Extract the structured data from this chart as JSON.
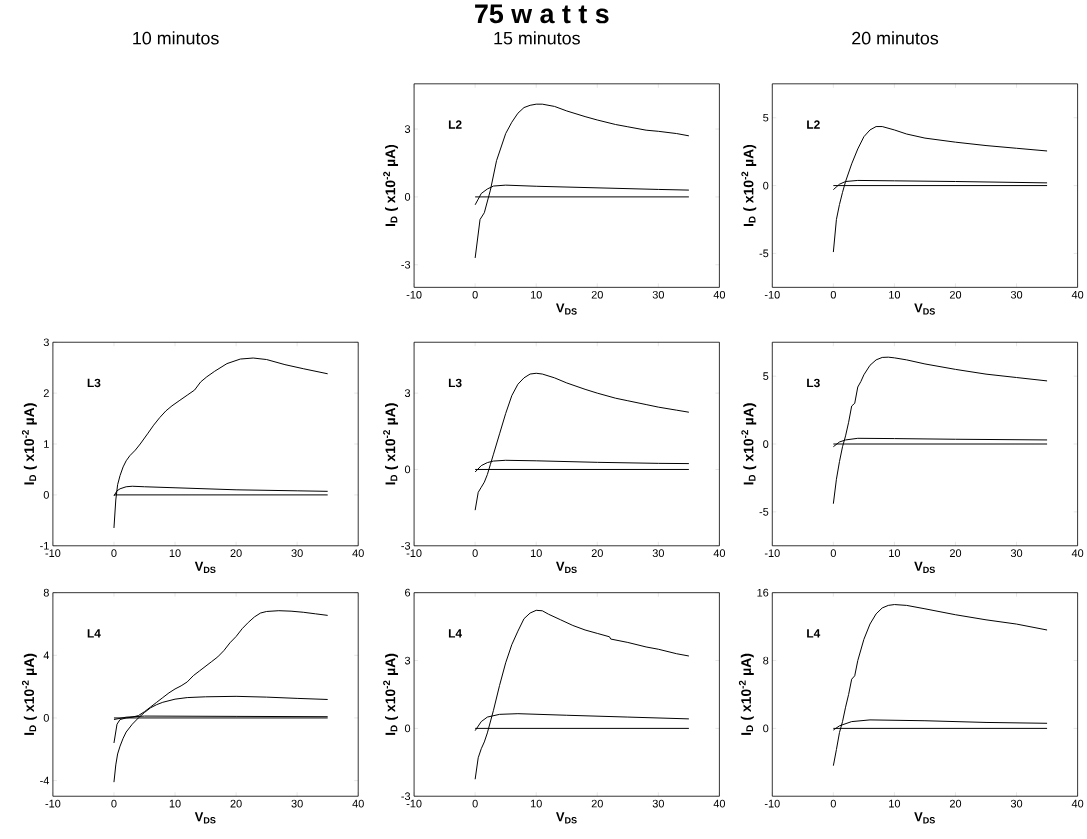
{
  "chart_data": [
    {
      "type": "line",
      "title": "75 w a t t s",
      "subtitle": "15 minutos",
      "xlabel": "V$_{DS}$",
      "ylabel": "I$_{D}$  ( x10$^{-2}$ µA)",
      "annotations": [
        "L2"
      ],
      "xlim": [
        -10,
        40
      ],
      "ylim": [
        -4,
        5
      ],
      "xticks": [
        -10,
        0,
        10,
        20,
        30,
        40
      ],
      "yticks": [
        -3,
        0,
        3
      ],
      "series": [
        {
          "color": "#000000",
          "x": [
            0,
            0.8,
            1.5,
            2.5,
            3.5,
            5,
            6,
            7,
            8,
            9,
            10,
            11,
            13,
            15,
            18,
            20,
            23,
            25,
            28,
            30,
            33,
            35
          ],
          "values": [
            -2.7,
            -1.0,
            -0.7,
            0.3,
            1.6,
            2.8,
            3.3,
            3.7,
            3.95,
            4.05,
            4.1,
            4.1,
            4.0,
            3.8,
            3.55,
            3.4,
            3.2,
            3.1,
            2.95,
            2.9,
            2.8,
            2.7
          ]
        },
        {
          "color": "#000000",
          "x": [
            0,
            0.5,
            1,
            2,
            3,
            5,
            10,
            20,
            30,
            35
          ],
          "values": [
            -0.35,
            -0.1,
            0.15,
            0.35,
            0.48,
            0.52,
            0.47,
            0.4,
            0.33,
            0.3
          ]
        },
        {
          "color": "#000000",
          "x": [
            0,
            35
          ],
          "values": [
            0,
            0
          ]
        }
      ]
    },
    {
      "type": "line",
      "subtitle": "20 minutos",
      "xlabel": "V$_{DS}$",
      "ylabel": "I$_{D}$  ( x10$^{-2}$ µA)",
      "annotations": [
        "L2"
      ],
      "xlim": [
        -10,
        40
      ],
      "ylim": [
        -7.5,
        7.5
      ],
      "xticks": [
        -10,
        0,
        10,
        20,
        30,
        40
      ],
      "yticks": [
        -5,
        0,
        5
      ],
      "series": [
        {
          "color": "#000000",
          "x": [
            0,
            0.5,
            1,
            1.5,
            2,
            3,
            4,
            5,
            6,
            7,
            8,
            10,
            12,
            15,
            20,
            25,
            30,
            35
          ],
          "values": [
            -4.9,
            -2.5,
            -1.4,
            -0.5,
            0.3,
            1.6,
            2.7,
            3.6,
            4.1,
            4.35,
            4.35,
            4.1,
            3.8,
            3.5,
            3.2,
            2.95,
            2.75,
            2.55
          ]
        },
        {
          "color": "#000000",
          "x": [
            0,
            1,
            2,
            4,
            10,
            20,
            35
          ],
          "values": [
            -0.3,
            0.1,
            0.3,
            0.38,
            0.35,
            0.3,
            0.2
          ]
        },
        {
          "color": "#000000",
          "x": [
            0,
            35
          ],
          "values": [
            0,
            0
          ]
        }
      ]
    },
    {
      "type": "line",
      "subtitle": "10 minutos",
      "xlabel": "V$_{DS}$",
      "ylabel": "I$_{D}$  ( x10$^{-2}$ µA)",
      "annotations": [
        "L3"
      ],
      "xlim": [
        -10,
        40
      ],
      "ylim": [
        -1,
        3
      ],
      "xticks": [
        -10,
        0,
        10,
        20,
        30,
        40
      ],
      "yticks": [
        -1,
        0,
        1,
        2,
        3
      ],
      "series": [
        {
          "color": "#000000",
          "x": [
            0,
            0.3,
            0.6,
            1,
            1.5,
            2,
            2.6,
            3.5,
            4.3,
            5.5,
            6.5,
            7.5,
            8.5,
            9.5,
            10.8,
            12,
            13.2,
            14.2,
            15.2,
            16.5,
            18.5,
            20.7,
            22.8,
            25,
            28,
            31,
            35
          ],
          "values": [
            -0.65,
            -0.1,
            0.2,
            0.38,
            0.55,
            0.67,
            0.77,
            0.88,
            1.0,
            1.2,
            1.37,
            1.52,
            1.65,
            1.75,
            1.86,
            1.96,
            2.06,
            2.22,
            2.32,
            2.43,
            2.58,
            2.67,
            2.69,
            2.66,
            2.56,
            2.48,
            2.38
          ]
        },
        {
          "color": "#000000",
          "x": [
            0,
            0.5,
            1,
            2,
            3,
            5,
            10,
            20,
            30,
            35
          ],
          "values": [
            -0.02,
            0.08,
            0.12,
            0.16,
            0.17,
            0.16,
            0.14,
            0.1,
            0.08,
            0.07
          ]
        },
        {
          "color": "#000000",
          "x": [
            0,
            35
          ],
          "values": [
            0,
            0
          ]
        }
      ]
    },
    {
      "type": "line",
      "xlabel": "V$_{DS}$",
      "ylabel": "I$_{D}$  ( x10$^{-2}$ µA)",
      "annotations": [
        "L3"
      ],
      "xlim": [
        -10,
        40
      ],
      "ylim": [
        -3,
        5
      ],
      "xticks": [
        -10,
        0,
        10,
        20,
        30,
        40
      ],
      "yticks": [
        -3,
        0,
        3
      ],
      "series": [
        {
          "color": "#000000",
          "x": [
            0,
            0.5,
            1,
            1.5,
            2,
            2.5,
            3,
            4,
            5,
            6,
            7,
            8,
            9,
            10,
            11,
            13,
            15,
            18,
            20,
            23,
            25,
            28,
            30,
            33,
            35
          ],
          "values": [
            -1.6,
            -0.9,
            -0.7,
            -0.5,
            -0.2,
            0.2,
            0.6,
            1.4,
            2.2,
            2.9,
            3.35,
            3.6,
            3.75,
            3.78,
            3.75,
            3.6,
            3.4,
            3.15,
            3.0,
            2.8,
            2.7,
            2.55,
            2.45,
            2.33,
            2.25
          ]
        },
        {
          "color": "#000000",
          "x": [
            0,
            1,
            2,
            3,
            5,
            10,
            20,
            30,
            35
          ],
          "values": [
            -0.1,
            0.15,
            0.27,
            0.33,
            0.36,
            0.34,
            0.28,
            0.24,
            0.23
          ]
        },
        {
          "color": "#000000",
          "x": [
            0,
            35
          ],
          "values": [
            0,
            0
          ]
        }
      ]
    },
    {
      "type": "line",
      "xlabel": "V$_{DS}$",
      "ylabel": "I$_{D}$  ( x10$^{-2}$ µA)",
      "annotations": [
        "L3"
      ],
      "xlim": [
        -10,
        40
      ],
      "ylim": [
        -7.5,
        7.5
      ],
      "xticks": [
        -10,
        0,
        10,
        20,
        30,
        40
      ],
      "yticks": [
        -5,
        0,
        5
      ],
      "series": [
        {
          "color": "#000000",
          "x": [
            0,
            0.5,
            1,
            1.5,
            2,
            2.5,
            3,
            3.5,
            4,
            4.5,
            5,
            6,
            7,
            8,
            9,
            10,
            12,
            15,
            20,
            25,
            30,
            35
          ],
          "values": [
            -4.4,
            -2.6,
            -1.3,
            -0.2,
            0.6,
            1.6,
            2.8,
            3.0,
            4.2,
            4.6,
            5.1,
            5.8,
            6.2,
            6.38,
            6.4,
            6.35,
            6.2,
            5.9,
            5.5,
            5.15,
            4.9,
            4.65
          ]
        },
        {
          "color": "#000000",
          "x": [
            0,
            1,
            2,
            4,
            10,
            20,
            35
          ],
          "values": [
            -0.2,
            0.15,
            0.3,
            0.42,
            0.4,
            0.35,
            0.3
          ]
        },
        {
          "color": "#000000",
          "x": [
            0,
            35
          ],
          "values": [
            0,
            0
          ]
        }
      ]
    },
    {
      "type": "line",
      "xlabel": "V$_{DS}$",
      "ylabel": "I$_{D}$  ( x10$^{-2}$ µA)",
      "annotations": [
        "L4"
      ],
      "xlim": [
        -10,
        40
      ],
      "ylim": [
        -5,
        8
      ],
      "xticks": [
        -10,
        0,
        10,
        20,
        30,
        40
      ],
      "yticks": [
        -4,
        0,
        4,
        8
      ],
      "series": [
        {
          "color": "#000000",
          "x": [
            0,
            0.5,
            1,
            2,
            3,
            4,
            5,
            6,
            7,
            8,
            9,
            10,
            11,
            12,
            13,
            14,
            15,
            16,
            17,
            18,
            19,
            20,
            21,
            22,
            23,
            24,
            25,
            27,
            29,
            31,
            33,
            35
          ],
          "values": [
            -1.6,
            -0.4,
            -0.1,
            0,
            0.05,
            0.15,
            0.4,
            0.7,
            1.0,
            1.3,
            1.6,
            1.85,
            2.05,
            2.3,
            2.7,
            3.0,
            3.3,
            3.6,
            3.9,
            4.3,
            4.8,
            5.2,
            5.7,
            6.1,
            6.45,
            6.7,
            6.8,
            6.85,
            6.82,
            6.75,
            6.65,
            6.55
          ]
        },
        {
          "color": "#000000",
          "x": [
            0,
            0.3,
            0.6,
            1,
            1.5,
            2,
            3,
            4,
            5,
            6,
            7,
            8,
            10,
            12,
            15,
            20,
            25,
            30,
            35
          ],
          "values": [
            -4.1,
            -3.0,
            -2.3,
            -1.8,
            -1.3,
            -0.9,
            -0.4,
            0,
            0.35,
            0.65,
            0.85,
            1.0,
            1.2,
            1.3,
            1.35,
            1.38,
            1.33,
            1.25,
            1.18
          ]
        },
        {
          "color": "#000000",
          "x": [
            0,
            2,
            5,
            20,
            35
          ],
          "values": [
            -0.1,
            0.05,
            0.12,
            0.1,
            0.08
          ]
        },
        {
          "color": "#000000",
          "x": [
            0,
            35
          ],
          "values": [
            0,
            0
          ]
        }
      ]
    },
    {
      "type": "line",
      "xlabel": "V$_{DS}$",
      "ylabel": "I$_{D}$  ( x10$^{-2}$ µA)",
      "annotations": [
        "L4"
      ],
      "xlim": [
        -10,
        40
      ],
      "ylim": [
        -3,
        6
      ],
      "xticks": [
        -10,
        0,
        10,
        20,
        30,
        40
      ],
      "yticks": [
        -3,
        0,
        3,
        6
      ],
      "series": [
        {
          "color": "#000000",
          "x": [
            0,
            0.5,
            1,
            1.5,
            2,
            3,
            4,
            5,
            6,
            7,
            8,
            9,
            10,
            11,
            12,
            14,
            16,
            18,
            20,
            22,
            22.2,
            25,
            28,
            30,
            33,
            35
          ],
          "values": [
            -2.25,
            -1.3,
            -0.9,
            -0.6,
            -0.2,
            0.8,
            1.9,
            2.9,
            3.7,
            4.3,
            4.85,
            5.1,
            5.22,
            5.2,
            5.05,
            4.8,
            4.55,
            4.35,
            4.2,
            4.05,
            3.95,
            3.8,
            3.6,
            3.5,
            3.3,
            3.2
          ]
        },
        {
          "color": "#000000",
          "x": [
            0,
            1,
            2,
            4,
            7,
            15,
            25,
            35
          ],
          "values": [
            -0.1,
            0.3,
            0.5,
            0.62,
            0.65,
            0.58,
            0.5,
            0.42
          ]
        },
        {
          "color": "#000000",
          "x": [
            0,
            35
          ],
          "values": [
            0,
            0
          ]
        }
      ]
    },
    {
      "type": "line",
      "xlabel": "V$_{DS}$",
      "ylabel": "I$_{D}$  ( x10$^{-2}$ µA)",
      "annotations": [
        "L4"
      ],
      "xlim": [
        -10,
        40
      ],
      "ylim": [
        -8,
        16
      ],
      "xticks": [
        -10,
        0,
        10,
        20,
        30,
        40
      ],
      "yticks": [
        0,
        8,
        16
      ],
      "series": [
        {
          "color": "#000000",
          "x": [
            0,
            0.5,
            1,
            1.5,
            2,
            2.5,
            3,
            3.5,
            4,
            5,
            6,
            7,
            8,
            9,
            10,
            12,
            15,
            20,
            25,
            30,
            35
          ],
          "values": [
            -4.4,
            -2.5,
            -0.5,
            0.8,
            2.5,
            4,
            5.8,
            6.2,
            8,
            10.5,
            12.3,
            13.5,
            14.2,
            14.5,
            14.6,
            14.5,
            14.1,
            13.4,
            12.8,
            12.3,
            11.6
          ]
        },
        {
          "color": "#000000",
          "x": [
            0,
            1,
            3,
            6,
            15,
            25,
            35
          ],
          "values": [
            -0.2,
            0.3,
            0.8,
            1.0,
            0.9,
            0.7,
            0.6
          ]
        },
        {
          "color": "#000000",
          "x": [
            0,
            35
          ],
          "values": [
            0,
            0
          ]
        }
      ]
    }
  ]
}
